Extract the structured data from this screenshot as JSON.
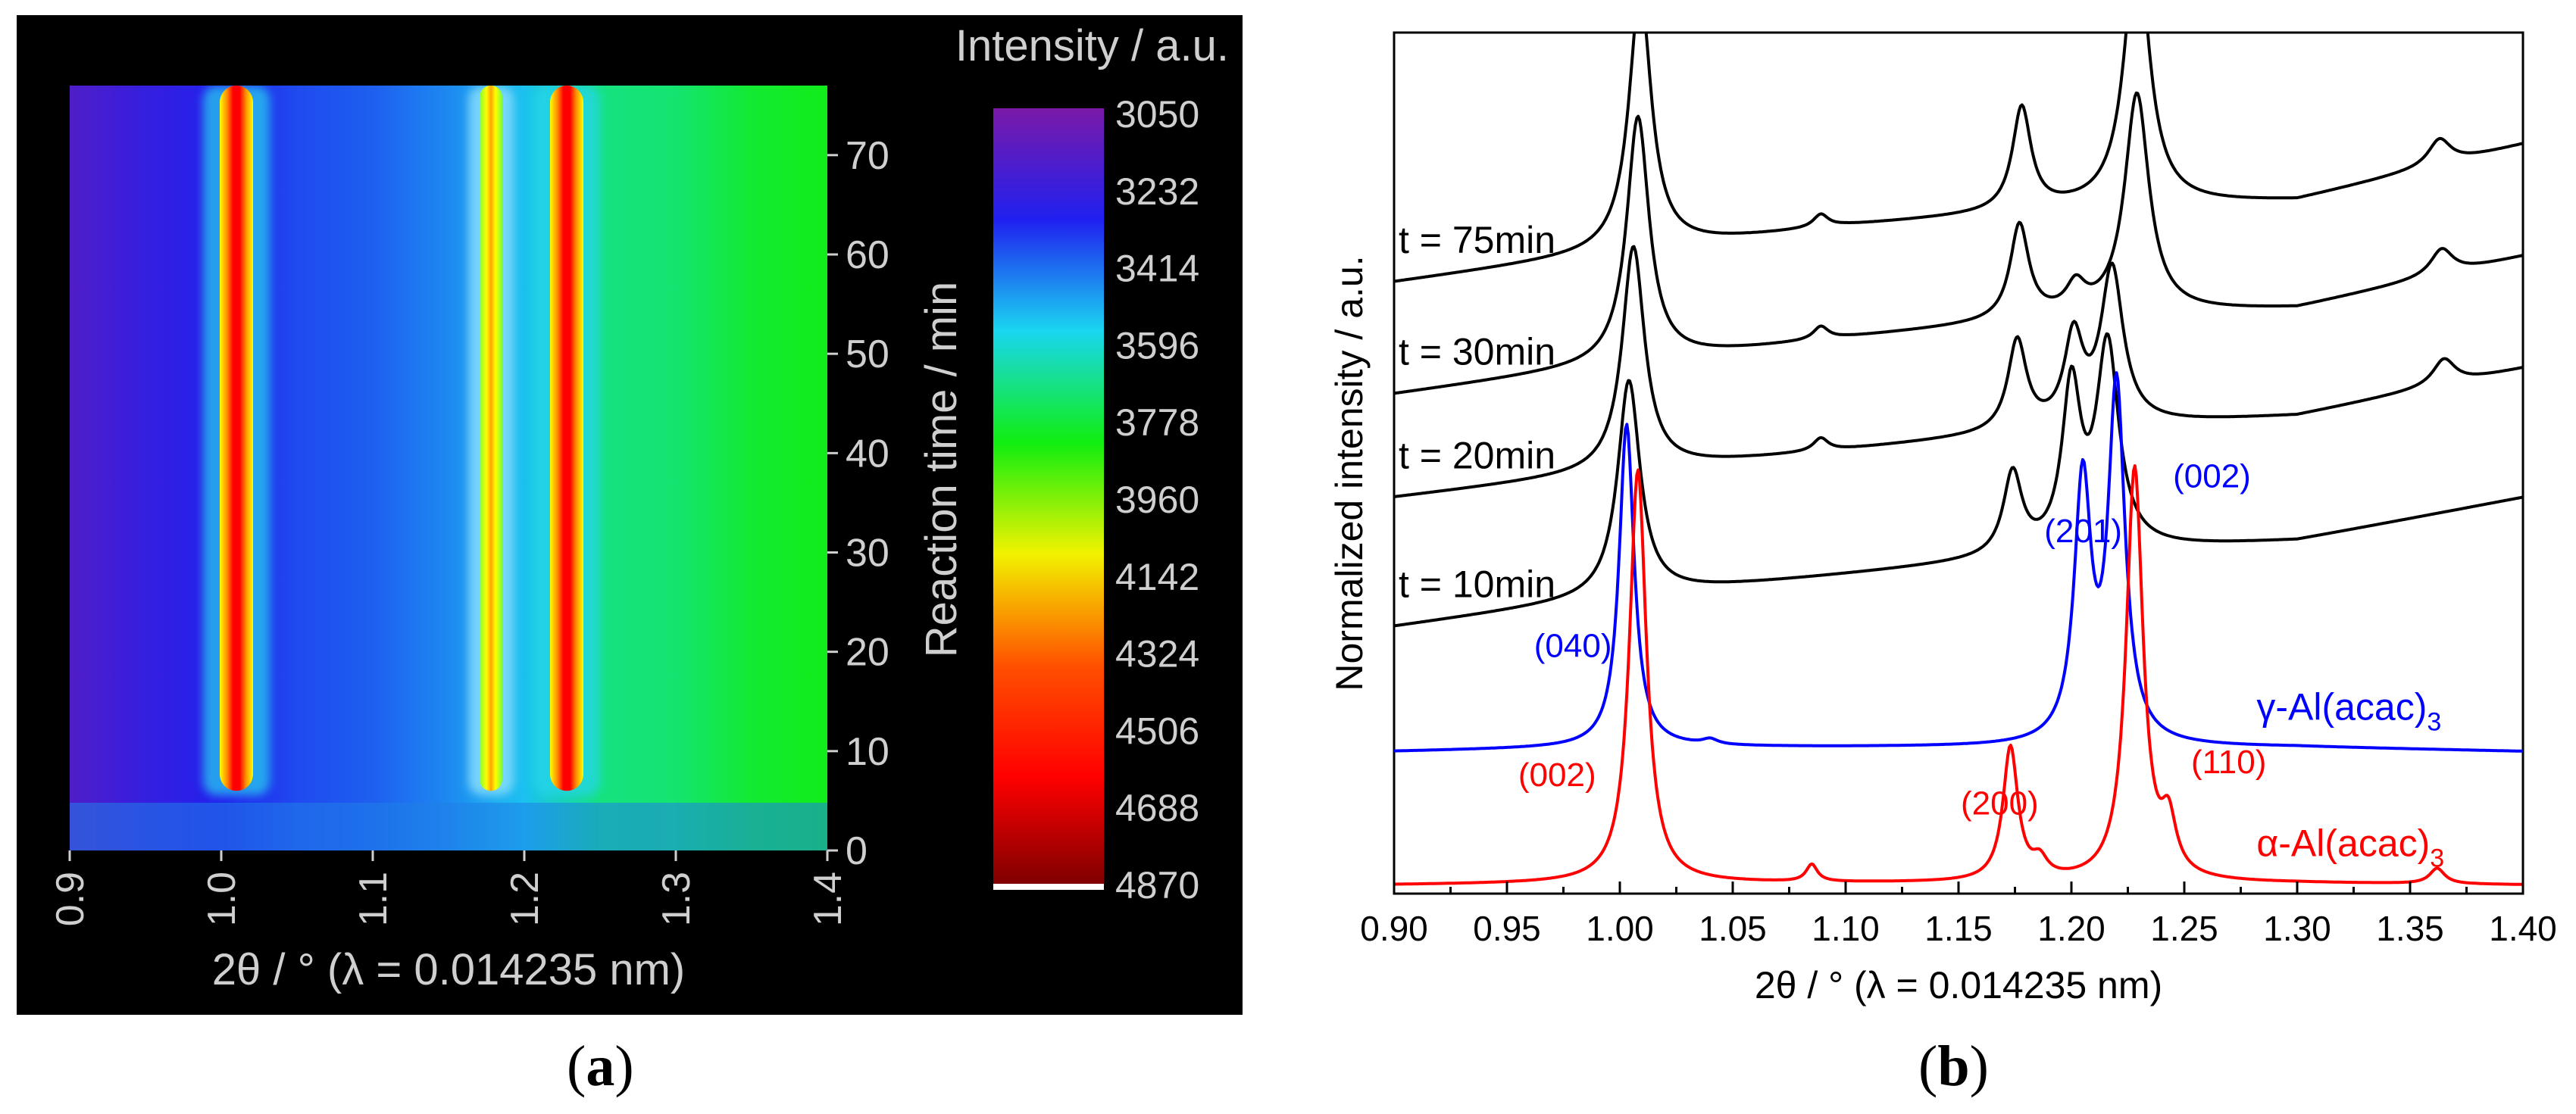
{
  "figure": {
    "panel_a_caption": {
      "open": "(",
      "letter": "a",
      "close": ")"
    },
    "panel_b_caption": {
      "open": "(",
      "letter": "b",
      "close": ")"
    }
  },
  "chart_data": [
    {
      "panel": "a",
      "type": "heatmap",
      "title": "",
      "xlabel": "2θ / ° (λ = 0.014235 nm)",
      "ylabel": "Reaction time / min",
      "colorbar_label": "Intensity / a.u.",
      "xlim": [
        0.9,
        1.4
      ],
      "ylim": [
        0,
        77
      ],
      "x_ticks": [
        0.9,
        1.0,
        1.1,
        1.2,
        1.3,
        1.4
      ],
      "x_tick_labels": [
        "0.9",
        "1.0",
        "1.1",
        "1.2",
        "1.3",
        "1.4"
      ],
      "y_ticks": [
        0,
        10,
        20,
        30,
        40,
        50,
        60,
        70
      ],
      "y_tick_labels": [
        "0",
        "10",
        "20",
        "30",
        "40",
        "50",
        "60",
        "70"
      ],
      "colorbar_values": [
        3050,
        3232,
        3414,
        3596,
        3778,
        3960,
        4142,
        4324,
        4506,
        4688,
        4870
      ],
      "colorbar_tick_labels": [
        "3050",
        "3232",
        "3414",
        "3596",
        "3778",
        "3960",
        "4142",
        "4324",
        "4506",
        "4688",
        "4870"
      ],
      "colorbar_colors": [
        "#7a1aa8",
        "#2020f0",
        "#1ad6f0",
        "#10ee10",
        "#f2f200",
        "#ff5000",
        "#ff0000",
        "#7a0000"
      ],
      "onset_time_min": 6,
      "background_intensity": [
        {
          "x": 0.9,
          "value": 3170
        },
        {
          "x": 0.95,
          "value": 3250
        },
        {
          "x": 1.0,
          "value": 3300
        },
        {
          "x": 1.05,
          "value": 3370
        },
        {
          "x": 1.1,
          "value": 3400
        },
        {
          "x": 1.15,
          "value": 3460
        },
        {
          "x": 1.2,
          "value": 3540
        },
        {
          "x": 1.25,
          "value": 3700
        },
        {
          "x": 1.3,
          "value": 3720
        },
        {
          "x": 1.35,
          "value": 3790
        },
        {
          "x": 1.4,
          "value": 3820
        }
      ],
      "reflections": [
        {
          "x": 1.01,
          "intensity": 4870,
          "start_min": 6,
          "end_min": 77
        },
        {
          "x": 1.178,
          "intensity": 4000,
          "start_min": 6,
          "end_min": 77
        },
        {
          "x": 1.228,
          "intensity": 4870,
          "start_min": 6,
          "end_min": 77
        }
      ]
    },
    {
      "panel": "b",
      "type": "line",
      "title": "",
      "xlabel": "2θ / ° (λ = 0.014235 nm)",
      "ylabel": "Normalized intensity / a.u.",
      "xlim": [
        0.9,
        1.4
      ],
      "ylim": [
        0,
        10
      ],
      "x_ticks": [
        0.9,
        0.95,
        1.0,
        1.05,
        1.1,
        1.15,
        1.2,
        1.25,
        1.3,
        1.35,
        1.4
      ],
      "x_tick_labels": [
        "0.90",
        "0.95",
        "1.00",
        "1.05",
        "1.10",
        "1.15",
        "1.20",
        "1.25",
        "1.30",
        "1.35",
        "1.40"
      ],
      "y_tick_labels": [],
      "series": [
        {
          "name": "t = 75min",
          "label_x": 0.902,
          "color": "#000000",
          "baseline": [
            [
              0.9,
              7.1
            ],
            [
              1.0,
              7.45
            ],
            [
              1.1,
              7.75
            ],
            [
              1.2,
              7.95
            ],
            [
              1.3,
              8.05
            ],
            [
              1.4,
              8.7
            ]
          ],
          "peaks": [
            [
              1.009,
              3.0,
              0.006
            ],
            [
              1.089,
              0.15,
              0.004
            ],
            [
              1.178,
              1.2,
              0.005
            ],
            [
              1.229,
              3.1,
              0.0065
            ],
            [
              1.363,
              0.3,
              0.006
            ]
          ]
        },
        {
          "name": "t = 30min",
          "label_x": 0.902,
          "color": "#000000",
          "baseline": [
            [
              0.9,
              5.8
            ],
            [
              1.0,
              6.15
            ],
            [
              1.1,
              6.45
            ],
            [
              1.2,
              6.7
            ],
            [
              1.3,
              6.8
            ],
            [
              1.4,
              7.4
            ]
          ],
          "peaks": [
            [
              1.008,
              2.85,
              0.006
            ],
            [
              1.089,
              0.15,
              0.004
            ],
            [
              1.177,
              1.1,
              0.005
            ],
            [
              1.202,
              0.3,
              0.005
            ],
            [
              1.229,
              2.55,
              0.0065
            ],
            [
              1.364,
              0.3,
              0.006
            ]
          ]
        },
        {
          "name": "t = 20min",
          "label_x": 0.902,
          "color": "#000000",
          "baseline": [
            [
              0.9,
              4.6
            ],
            [
              1.0,
              4.9
            ],
            [
              1.1,
              5.15
            ],
            [
              1.2,
              5.4
            ],
            [
              1.3,
              5.55
            ],
            [
              1.4,
              6.1
            ]
          ],
          "peaks": [
            [
              1.006,
              2.6,
              0.006
            ],
            [
              1.089,
              0.15,
              0.004
            ],
            [
              1.176,
              1.05,
              0.005
            ],
            [
              1.201,
              1.0,
              0.005
            ],
            [
              1.218,
              1.8,
              0.006
            ],
            [
              1.365,
              0.3,
              0.006
            ]
          ]
        },
        {
          "name": "t = 10min",
          "label_x": 0.902,
          "color": "#000000",
          "baseline": [
            [
              0.9,
              3.1
            ],
            [
              1.0,
              3.45
            ],
            [
              1.1,
              3.7
            ],
            [
              1.2,
              3.95
            ],
            [
              1.3,
              4.1
            ],
            [
              1.4,
              4.6
            ]
          ],
          "peaks": [
            [
              1.004,
              2.5,
              0.006
            ],
            [
              1.174,
              0.95,
              0.005
            ],
            [
              1.2,
              1.85,
              0.005
            ],
            [
              1.216,
              2.35,
              0.006
            ]
          ]
        },
        {
          "name": "γ-Al(acac)",
          "subscript": "3",
          "label_x": 1.282,
          "color": "#0000ff",
          "baseline": [
            [
              0.9,
              1.65
            ],
            [
              1.0,
              1.7
            ],
            [
              1.1,
              1.7
            ],
            [
              1.2,
              1.7
            ],
            [
              1.3,
              1.7
            ],
            [
              1.4,
              1.65
            ]
          ],
          "peaks": [
            [
              1.003,
              3.75,
              0.004
            ],
            [
              1.04,
              0.06,
              0.004
            ],
            [
              1.205,
              3.0,
              0.0045
            ],
            [
              1.22,
              4.1,
              0.0045
            ]
          ]
        },
        {
          "name": "α-Al(acac)",
          "subscript": "3",
          "label_x": 1.282,
          "color": "#ff0000",
          "baseline": [
            [
              0.9,
              0.1
            ],
            [
              1.0,
              0.12
            ],
            [
              1.1,
              0.12
            ],
            [
              1.2,
              0.12
            ],
            [
              1.3,
              0.12
            ],
            [
              1.4,
              0.1
            ]
          ],
          "peaks": [
            [
              1.008,
              4.8,
              0.0045
            ],
            [
              1.085,
              0.2,
              0.003
            ],
            [
              1.173,
              1.55,
              0.004
            ],
            [
              1.186,
              0.2,
              0.004
            ],
            [
              1.228,
              4.8,
              0.0045
            ],
            [
              1.243,
              0.6,
              0.004
            ],
            [
              1.362,
              0.18,
              0.004
            ]
          ]
        }
      ],
      "annotations": [
        {
          "text": "(040)",
          "x": 0.962,
          "y": 2.75,
          "color": "#0000ff"
        },
        {
          "text": "(201)",
          "x": 1.188,
          "y": 4.08,
          "color": "#0000ff"
        },
        {
          "text": "(002)",
          "x": 1.245,
          "y": 4.72,
          "color": "#0000ff"
        },
        {
          "text": "(002)",
          "x": 0.955,
          "y": 1.25,
          "color": "#ff0000"
        },
        {
          "text": "(200)",
          "x": 1.151,
          "y": 0.92,
          "color": "#ff0000"
        },
        {
          "text": "(110)",
          "x": 1.253,
          "y": 1.4,
          "color": "#ff0000"
        }
      ]
    }
  ]
}
